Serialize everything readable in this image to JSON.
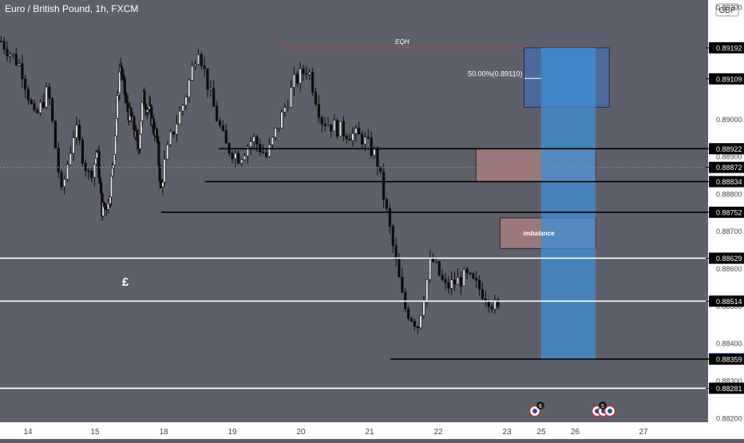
{
  "header": {
    "title": "Euro / British Pound, 1h, FXCM",
    "currency": "GBP"
  },
  "colors": {
    "background": "#5d606b",
    "axis_bg": "#ffffff",
    "axis_text": "#444444",
    "candle": "#0d0d0d",
    "box_blue": "#3f72c7",
    "box_red": "#b08080",
    "target_blue": "#3f8fd6",
    "eqh_line": "#d33a3a",
    "level_black": "#000000",
    "level_white": "#ffffff",
    "current_price_bg": "#2962ff"
  },
  "chart_data": {
    "type": "candlestick",
    "symbol": "EURGBP",
    "timeframe": "1h",
    "ylim": [
      0.8819,
      0.8932
    ],
    "y_ticks": [
      "0.88200",
      "0.88300",
      "0.88400",
      "0.88500",
      "0.88600",
      "0.88700",
      "0.88800",
      "0.88900",
      "0.89000",
      "0.89100",
      "0.89300"
    ],
    "x_ticks": [
      {
        "label": "14",
        "day": 14
      },
      {
        "label": "15",
        "day": 15
      },
      {
        "label": "18",
        "day": 18
      },
      {
        "label": "19",
        "day": 19
      },
      {
        "label": "20",
        "day": 20
      },
      {
        "label": "21",
        "day": 21
      },
      {
        "label": "22",
        "day": 22
      },
      {
        "label": "23",
        "day": 23
      },
      {
        "label": "25",
        "day": 25
      },
      {
        "label": "26",
        "day": 26
      },
      {
        "label": "27",
        "day": 27
      }
    ],
    "price_path": [
      [
        13.6,
        0.8921
      ],
      [
        13.9,
        0.8914
      ],
      [
        14.1,
        0.89
      ],
      [
        14.3,
        0.8908
      ],
      [
        14.5,
        0.888
      ],
      [
        14.7,
        0.8898
      ],
      [
        14.9,
        0.8885
      ],
      [
        15.1,
        0.8892
      ],
      [
        15.3,
        0.8876
      ],
      [
        15.6,
        0.8878
      ],
      [
        15.8,
        0.8888
      ],
      [
        16.1,
        0.8915
      ],
      [
        16.4,
        0.8903
      ],
      [
        16.7,
        0.8898
      ],
      [
        16.9,
        0.8892
      ],
      [
        17.1,
        0.8906
      ],
      [
        17.4,
        0.8902
      ],
      [
        17.7,
        0.8895
      ],
      [
        17.9,
        0.888
      ],
      [
        18.1,
        0.8895
      ],
      [
        18.3,
        0.8905
      ],
      [
        18.5,
        0.892
      ],
      [
        18.7,
        0.8905
      ],
      [
        18.9,
        0.8893
      ],
      [
        19.1,
        0.889
      ],
      [
        19.3,
        0.8895
      ],
      [
        19.5,
        0.889
      ],
      [
        19.7,
        0.89
      ],
      [
        19.9,
        0.891
      ],
      [
        20.1,
        0.8914
      ],
      [
        20.3,
        0.89
      ],
      [
        20.6,
        0.8897
      ],
      [
        20.9,
        0.8895
      ],
      [
        21.1,
        0.889
      ],
      [
        21.3,
        0.887
      ],
      [
        21.5,
        0.885
      ],
      [
        21.7,
        0.8845
      ],
      [
        21.9,
        0.8863
      ],
      [
        22.1,
        0.8855
      ],
      [
        22.4,
        0.8858
      ],
      [
        22.7,
        0.8853
      ],
      [
        22.9,
        0.8848
      ],
      [
        23.1,
        0.8863
      ],
      [
        23.4,
        0.886
      ],
      [
        23.7,
        0.8858
      ],
      [
        24.0,
        0.8865
      ],
      [
        24.3,
        0.8874
      ],
      [
        24.6,
        0.889
      ],
      [
        24.9,
        0.8905
      ],
      [
        25.1,
        0.891
      ],
      [
        25.3,
        0.89
      ],
      [
        25.5,
        0.8895
      ],
      [
        25.7,
        0.8893
      ],
      [
        25.8,
        0.8889
      ]
    ],
    "last_price": 0.88872,
    "annotations": {
      "eqh_label": "EQH",
      "eqh_price": 0.89192,
      "fib_label": "50.00%(0.89110)",
      "fib_price": 0.8911,
      "imbalance_label": "imbalance",
      "currency_symbol": "£",
      "event_markers": [
        "6",
        "5"
      ]
    },
    "horizontal_levels": [
      {
        "price": 0.88922,
        "color": "black",
        "label": "0.88922"
      },
      {
        "price": 0.88834,
        "color": "black",
        "label": "0.88834"
      },
      {
        "price": 0.88752,
        "color": "black",
        "label": "0.88752"
      },
      {
        "price": 0.88629,
        "color": "white",
        "label": "0.88629"
      },
      {
        "price": 0.88514,
        "color": "white",
        "label": "0.88514"
      },
      {
        "price": 0.88359,
        "color": "black",
        "label": "0.88359"
      },
      {
        "price": 0.88281,
        "color": "white",
        "label": "0.88281"
      }
    ],
    "price_labels": [
      {
        "price": 0.89192,
        "text": "0.89192"
      },
      {
        "price": 0.89109,
        "text": "0.89109"
      },
      {
        "price": 0.88922,
        "text": "0.88922"
      },
      {
        "price": 0.88872,
        "text": "0.88872"
      },
      {
        "price": 0.88834,
        "text": "0.88834"
      },
      {
        "price": 0.88752,
        "text": "0.88752"
      },
      {
        "price": 0.88629,
        "text": "0.88629"
      },
      {
        "price": 0.88514,
        "text": "0.88514"
      },
      {
        "price": 0.8836,
        "text": "0.88360",
        "highlight": true
      },
      {
        "price": 0.88359,
        "text": "0.88359"
      },
      {
        "price": 0.88281,
        "text": "0.88281"
      }
    ],
    "zones": [
      {
        "name": "premium-zone",
        "x0": 24.5,
        "x1": 26.5,
        "y0": 0.89033,
        "y1": 0.89192,
        "color": "blue"
      },
      {
        "name": "bearish-order-block",
        "x0": 23.1,
        "x1": 26.3,
        "y0": 0.88834,
        "y1": 0.88922,
        "color": "red"
      },
      {
        "name": "imbalance-zone",
        "x0": 22.9,
        "x1": 26.3,
        "y0": 0.88655,
        "y1": 0.88737,
        "color": "red"
      },
      {
        "name": "target-zone",
        "x0": 25.5,
        "x1": 26.3,
        "y0": 0.8836,
        "y1": 0.89192,
        "color": "blue"
      }
    ]
  }
}
